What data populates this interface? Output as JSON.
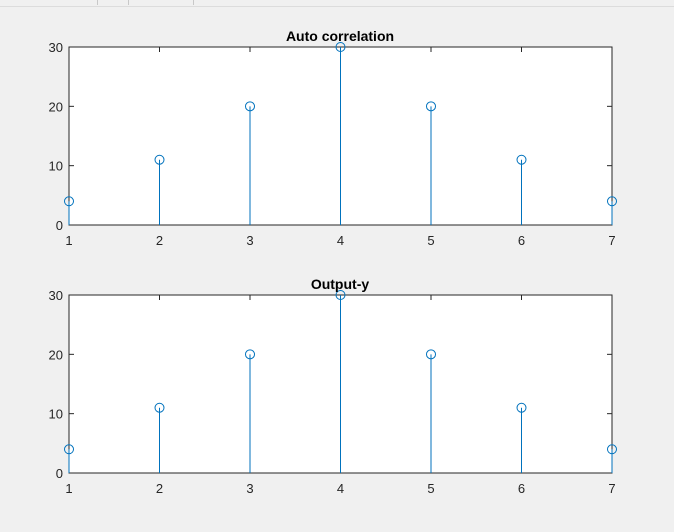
{
  "chart_data": [
    {
      "type": "stem",
      "title": "Auto correlation",
      "xlabel": "",
      "ylabel": "",
      "x": [
        1,
        2,
        3,
        4,
        5,
        6,
        7
      ],
      "values": [
        4,
        11,
        20,
        30,
        20,
        11,
        4
      ],
      "xlim": [
        1,
        7
      ],
      "ylim": [
        0,
        30
      ],
      "xticks": [
        "1",
        "2",
        "3",
        "4",
        "5",
        "6",
        "7"
      ],
      "yticks": [
        "0",
        "10",
        "20",
        "30"
      ],
      "grid": false,
      "marker": "circle",
      "color": "#0072bd"
    },
    {
      "type": "stem",
      "title": "Output-y",
      "xlabel": "",
      "ylabel": "",
      "x": [
        1,
        2,
        3,
        4,
        5,
        6,
        7
      ],
      "values": [
        4,
        11,
        20,
        30,
        20,
        11,
        4
      ],
      "xlim": [
        1,
        7
      ],
      "ylim": [
        0,
        30
      ],
      "xticks": [
        "1",
        "2",
        "3",
        "4",
        "5",
        "6",
        "7"
      ],
      "yticks": [
        "0",
        "10",
        "20",
        "30"
      ],
      "grid": false,
      "marker": "circle",
      "color": "#0072bd"
    }
  ],
  "colors": {
    "figure_background": "#f0f0f0",
    "axes_background": "#ffffff",
    "axes_line": "#262626",
    "stem": "#0072bd"
  }
}
